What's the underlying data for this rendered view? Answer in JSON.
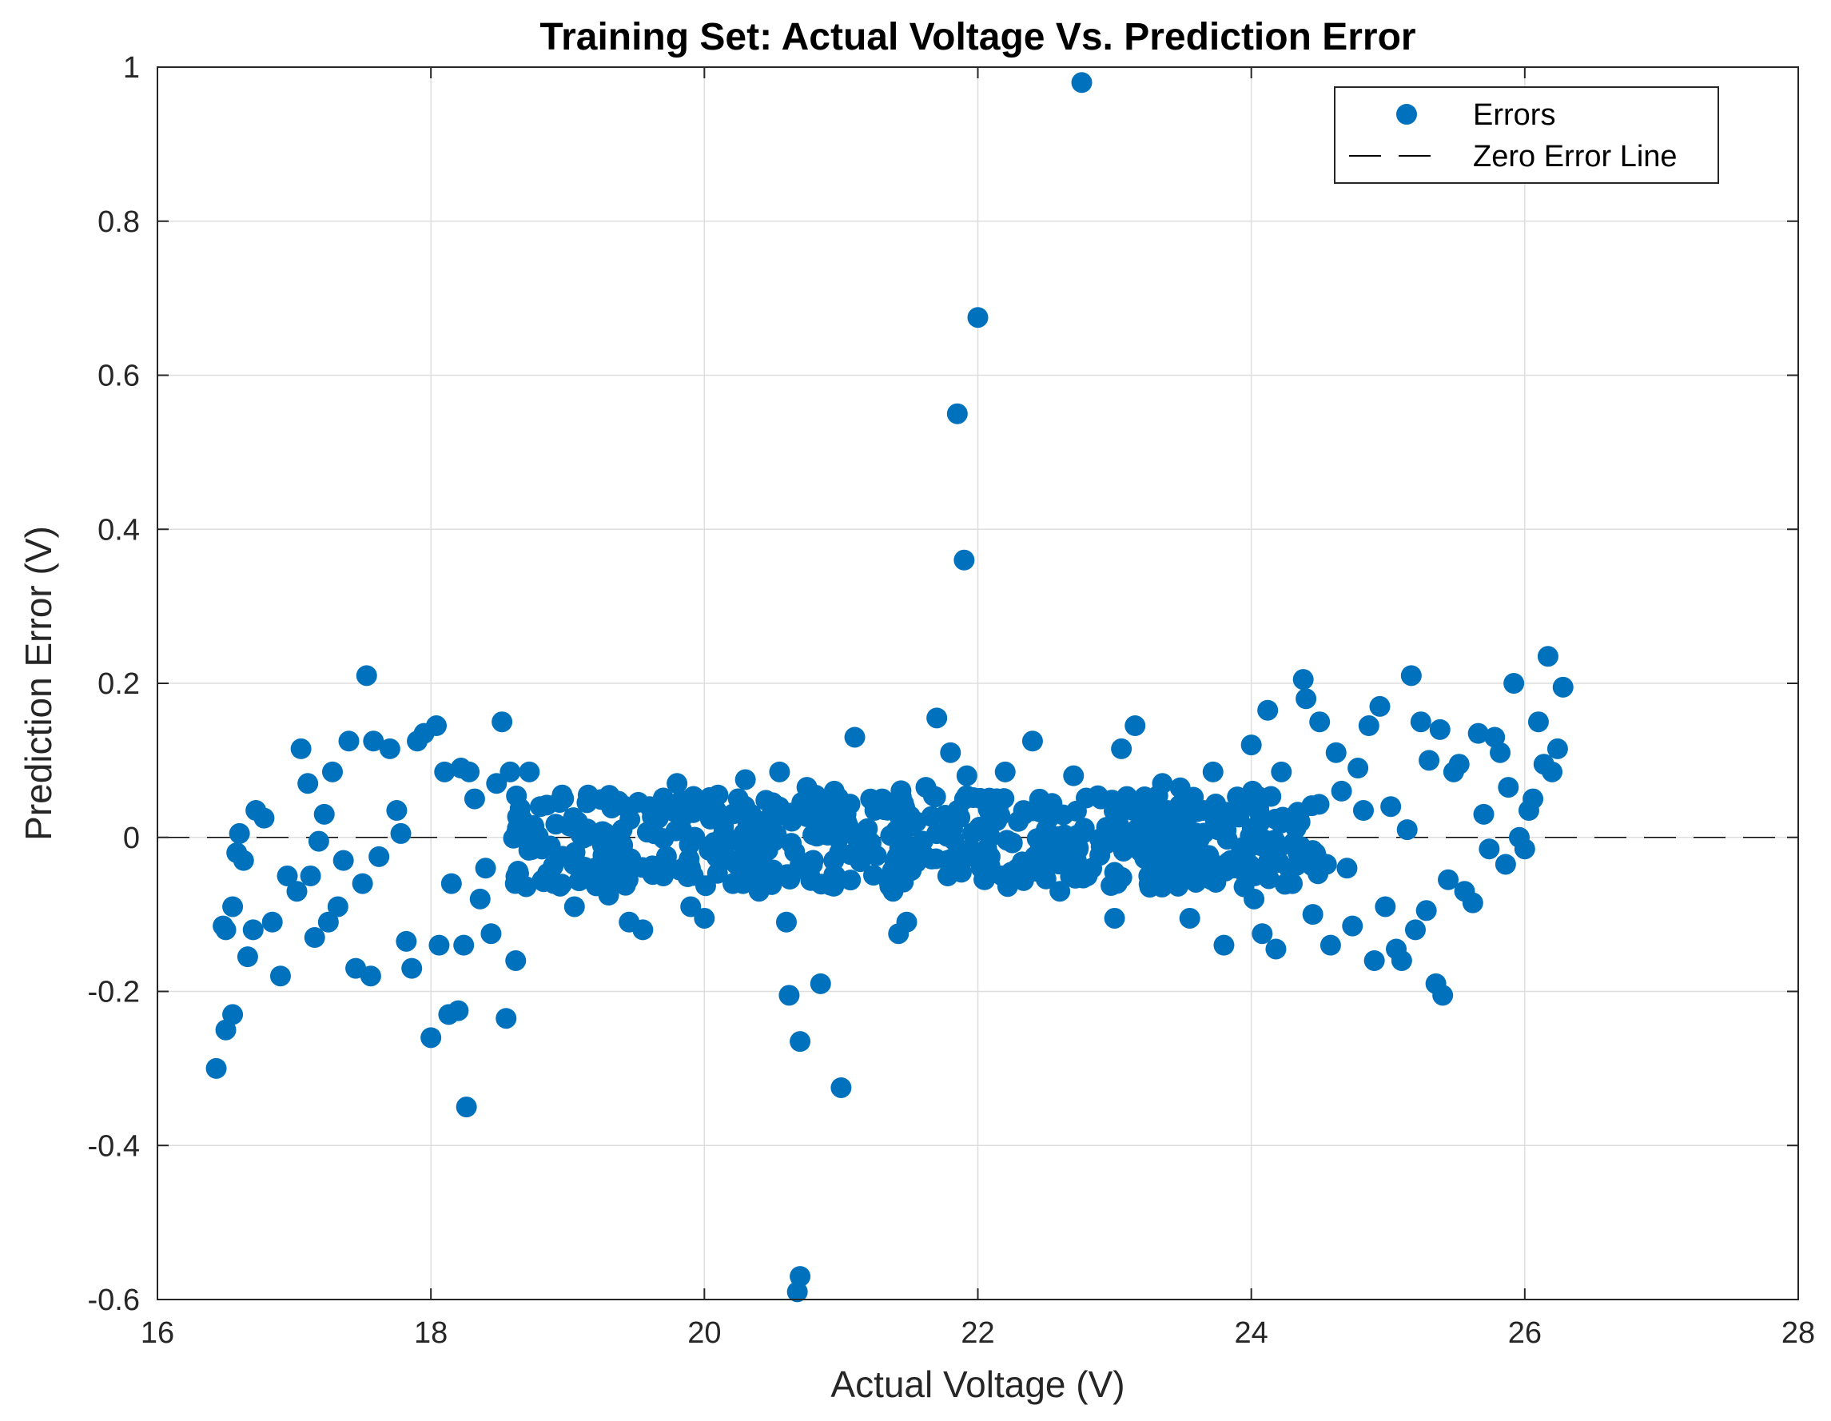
{
  "chart_data": {
    "type": "scatter",
    "title": "Training Set: Actual Voltage Vs. Prediction Error",
    "xlabel": "Actual Voltage (V)",
    "ylabel": "Prediction Error (V)",
    "xlim": [
      16,
      28
    ],
    "ylim": [
      -0.6,
      1
    ],
    "xticks": [
      16,
      18,
      20,
      22,
      24,
      26,
      28
    ],
    "yticks": [
      -0.6,
      -0.4,
      -0.2,
      0,
      0.2,
      0.4,
      0.6,
      0.8,
      1
    ],
    "xtick_labels": [
      "16",
      "18",
      "20",
      "22",
      "24",
      "26",
      "28"
    ],
    "ytick_labels": [
      "-0.6",
      "-0.4",
      "-0.2",
      "0",
      "0.2",
      "0.4",
      "0.6",
      "0.8",
      "1"
    ],
    "grid": true,
    "legend_position": "top-right",
    "colors": {
      "errors": "#0072BD",
      "zero_line": "#000000",
      "grid": "#dedede",
      "axis": "#262626"
    },
    "series": [
      {
        "name": "Errors",
        "kind": "scatter",
        "points": [
          [
            16.43,
            -0.3
          ],
          [
            16.48,
            -0.115
          ],
          [
            16.5,
            -0.12
          ],
          [
            16.5,
            -0.25
          ],
          [
            16.55,
            -0.23
          ],
          [
            16.55,
            -0.09
          ],
          [
            16.58,
            -0.02
          ],
          [
            16.6,
            0.005
          ],
          [
            16.63,
            -0.03
          ],
          [
            16.66,
            -0.155
          ],
          [
            16.7,
            -0.12
          ],
          [
            16.72,
            0.035
          ],
          [
            16.78,
            0.025
          ],
          [
            16.84,
            -0.11
          ],
          [
            16.9,
            -0.18
          ],
          [
            16.95,
            -0.05
          ],
          [
            17.02,
            -0.07
          ],
          [
            17.05,
            0.115
          ],
          [
            17.1,
            0.07
          ],
          [
            17.12,
            -0.05
          ],
          [
            17.15,
            -0.13
          ],
          [
            17.18,
            -0.005
          ],
          [
            17.22,
            0.03
          ],
          [
            17.25,
            -0.11
          ],
          [
            17.28,
            0.085
          ],
          [
            17.32,
            -0.09
          ],
          [
            17.36,
            -0.03
          ],
          [
            17.4,
            0.125
          ],
          [
            17.45,
            -0.17
          ],
          [
            17.5,
            -0.06
          ],
          [
            17.53,
            0.21
          ],
          [
            17.56,
            -0.18
          ],
          [
            17.58,
            0.125
          ],
          [
            17.62,
            -0.025
          ],
          [
            17.7,
            0.115
          ],
          [
            17.75,
            0.035
          ],
          [
            17.78,
            0.005
          ],
          [
            17.82,
            -0.135
          ],
          [
            17.86,
            -0.17
          ],
          [
            17.9,
            0.125
          ],
          [
            17.95,
            0.135
          ],
          [
            18.0,
            -0.26
          ],
          [
            18.04,
            0.145
          ],
          [
            18.06,
            -0.14
          ],
          [
            18.1,
            0.085
          ],
          [
            18.13,
            -0.23
          ],
          [
            18.15,
            -0.06
          ],
          [
            18.2,
            -0.225
          ],
          [
            18.22,
            0.09
          ],
          [
            18.24,
            -0.14
          ],
          [
            18.26,
            -0.35
          ],
          [
            18.28,
            0.085
          ],
          [
            18.32,
            0.05
          ],
          [
            18.36,
            -0.08
          ],
          [
            18.4,
            -0.04
          ],
          [
            18.44,
            -0.125
          ],
          [
            18.48,
            0.07
          ],
          [
            18.52,
            0.15
          ],
          [
            18.55,
            -0.235
          ],
          [
            18.58,
            0.085
          ],
          [
            18.62,
            -0.16
          ],
          [
            18.66,
            0.0
          ],
          [
            18.72,
            0.085
          ],
          [
            18.8,
            0.04
          ],
          [
            18.9,
            -0.06
          ],
          [
            18.96,
            0.055
          ],
          [
            19.05,
            -0.09
          ],
          [
            19.1,
            0.01
          ],
          [
            19.15,
            0.055
          ],
          [
            19.2,
            -0.04
          ],
          [
            19.3,
            -0.075
          ],
          [
            19.35,
            0.045
          ],
          [
            19.45,
            -0.11
          ],
          [
            19.55,
            -0.12
          ],
          [
            19.6,
            0.04
          ],
          [
            19.7,
            -0.05
          ],
          [
            19.8,
            0.07
          ],
          [
            19.9,
            -0.09
          ],
          [
            20.0,
            -0.105
          ],
          [
            20.1,
            0.055
          ],
          [
            20.2,
            -0.03
          ],
          [
            20.3,
            0.075
          ],
          [
            20.4,
            -0.07
          ],
          [
            20.5,
            0.045
          ],
          [
            20.55,
            0.085
          ],
          [
            20.6,
            -0.11
          ],
          [
            20.62,
            -0.205
          ],
          [
            20.68,
            -0.59
          ],
          [
            20.7,
            -0.57
          ],
          [
            20.7,
            -0.265
          ],
          [
            20.75,
            0.065
          ],
          [
            20.85,
            -0.19
          ],
          [
            20.95,
            0.06
          ],
          [
            21.0,
            -0.325
          ],
          [
            21.1,
            0.13
          ],
          [
            21.2,
            -0.01
          ],
          [
            21.3,
            0.05
          ],
          [
            21.38,
            -0.07
          ],
          [
            21.42,
            -0.125
          ],
          [
            21.48,
            -0.11
          ],
          [
            21.55,
            0.02
          ],
          [
            21.62,
            0.065
          ],
          [
            21.7,
            0.155
          ],
          [
            21.78,
            -0.05
          ],
          [
            21.8,
            0.11
          ],
          [
            21.85,
            0.55
          ],
          [
            21.9,
            0.36
          ],
          [
            21.92,
            0.08
          ],
          [
            22.0,
            0.675
          ],
          [
            22.05,
            -0.055
          ],
          [
            22.15,
            0.04
          ],
          [
            22.2,
            0.085
          ],
          [
            22.3,
            -0.04
          ],
          [
            22.4,
            0.125
          ],
          [
            22.5,
            0.01
          ],
          [
            22.6,
            -0.07
          ],
          [
            22.7,
            0.08
          ],
          [
            22.76,
            0.98
          ],
          [
            22.8,
            -0.05
          ],
          [
            22.9,
            0.05
          ],
          [
            23.0,
            -0.105
          ],
          [
            23.05,
            0.115
          ],
          [
            23.15,
            0.145
          ],
          [
            23.25,
            -0.05
          ],
          [
            23.35,
            0.07
          ],
          [
            23.45,
            -0.02
          ],
          [
            23.55,
            -0.105
          ],
          [
            23.65,
            0.035
          ],
          [
            23.72,
            0.085
          ],
          [
            23.8,
            -0.14
          ],
          [
            23.85,
            -0.03
          ],
          [
            23.95,
            0.05
          ],
          [
            24.0,
            0.12
          ],
          [
            24.02,
            -0.08
          ],
          [
            24.08,
            -0.125
          ],
          [
            24.12,
            0.165
          ],
          [
            24.18,
            -0.145
          ],
          [
            24.22,
            0.085
          ],
          [
            24.3,
            -0.06
          ],
          [
            24.35,
            0.03
          ],
          [
            24.38,
            0.205
          ],
          [
            24.4,
            0.18
          ],
          [
            24.45,
            -0.1
          ],
          [
            24.5,
            0.15
          ],
          [
            24.55,
            -0.035
          ],
          [
            24.58,
            -0.14
          ],
          [
            24.62,
            0.11
          ],
          [
            24.66,
            0.06
          ],
          [
            24.7,
            -0.04
          ],
          [
            24.74,
            -0.115
          ],
          [
            24.78,
            0.09
          ],
          [
            24.82,
            0.035
          ],
          [
            24.86,
            0.145
          ],
          [
            24.9,
            -0.16
          ],
          [
            24.94,
            0.17
          ],
          [
            24.98,
            -0.09
          ],
          [
            25.02,
            0.04
          ],
          [
            25.06,
            -0.145
          ],
          [
            25.1,
            -0.16
          ],
          [
            25.14,
            0.01
          ],
          [
            25.17,
            0.21
          ],
          [
            25.2,
            -0.12
          ],
          [
            25.24,
            0.15
          ],
          [
            25.28,
            -0.095
          ],
          [
            25.3,
            0.1
          ],
          [
            25.35,
            -0.19
          ],
          [
            25.38,
            0.14
          ],
          [
            25.4,
            -0.205
          ],
          [
            25.44,
            -0.055
          ],
          [
            25.48,
            0.085
          ],
          [
            25.52,
            0.095
          ],
          [
            25.56,
            -0.07
          ],
          [
            25.62,
            -0.085
          ],
          [
            25.66,
            0.135
          ],
          [
            25.7,
            0.03
          ],
          [
            25.74,
            -0.015
          ],
          [
            25.78,
            0.13
          ],
          [
            25.82,
            0.11
          ],
          [
            25.86,
            -0.035
          ],
          [
            25.88,
            0.065
          ],
          [
            25.92,
            0.2
          ],
          [
            25.96,
            0.0
          ],
          [
            26.0,
            -0.015
          ],
          [
            26.03,
            0.035
          ],
          [
            26.06,
            0.05
          ],
          [
            26.1,
            0.15
          ],
          [
            26.14,
            0.095
          ],
          [
            26.17,
            0.235
          ],
          [
            26.2,
            0.085
          ],
          [
            26.24,
            0.115
          ],
          [
            26.28,
            0.195
          ]
        ]
      },
      {
        "name": "Zero Error Line",
        "kind": "line",
        "y": 0,
        "style": "dashed"
      }
    ],
    "dense_band": {
      "x_min": 18.6,
      "x_max": 24.5,
      "y_min": -0.06,
      "y_max": 0.075,
      "density": "high"
    }
  }
}
